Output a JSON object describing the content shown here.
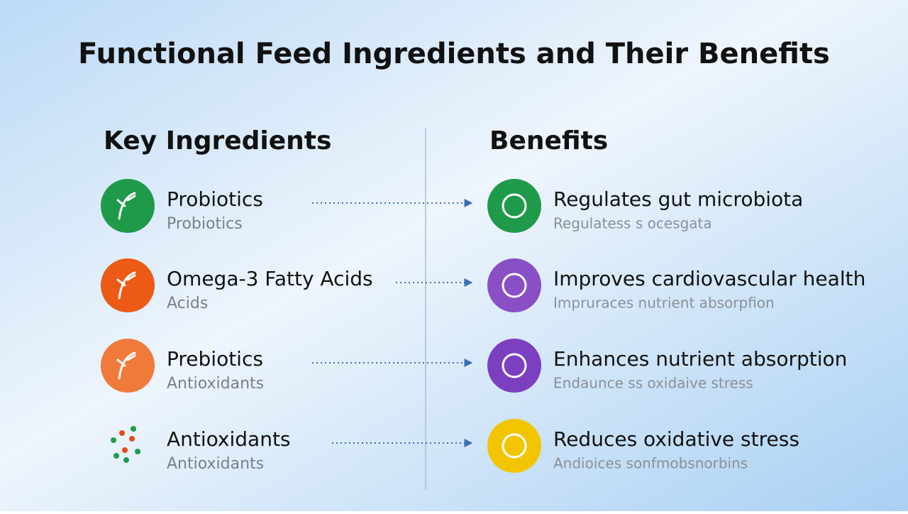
{
  "header": {
    "title": "Functional Feed Ingredients and Their Benefits"
  },
  "columns": {
    "left": "Key Ingredients",
    "right": "Benefits"
  },
  "rows": [
    {
      "ingredient": "Probiotics",
      "ingredient_sub": "Probiotics",
      "benefit": "Regulates gut microbiota",
      "benefit_sub": "Regulatess s ocesgata"
    },
    {
      "ingredient": "Omega-3 Fatty Acids",
      "ingredient_sub": "Acids",
      "benefit": "Improves cardiovascular health",
      "benefit_sub": "Impruraces nutrient absorpfion"
    },
    {
      "ingredient": "Prebiotics",
      "ingredient_sub": "Antioxidants",
      "benefit": "Enhances nutrient absorption",
      "benefit_sub": "Endaunce ss oxidaive stress"
    },
    {
      "ingredient": "Antioxidants",
      "ingredient_sub": "Antioxidants",
      "benefit": "Reduces oxidative stress",
      "benefit_sub": "Andioices sonfmobsnorbins"
    }
  ]
}
